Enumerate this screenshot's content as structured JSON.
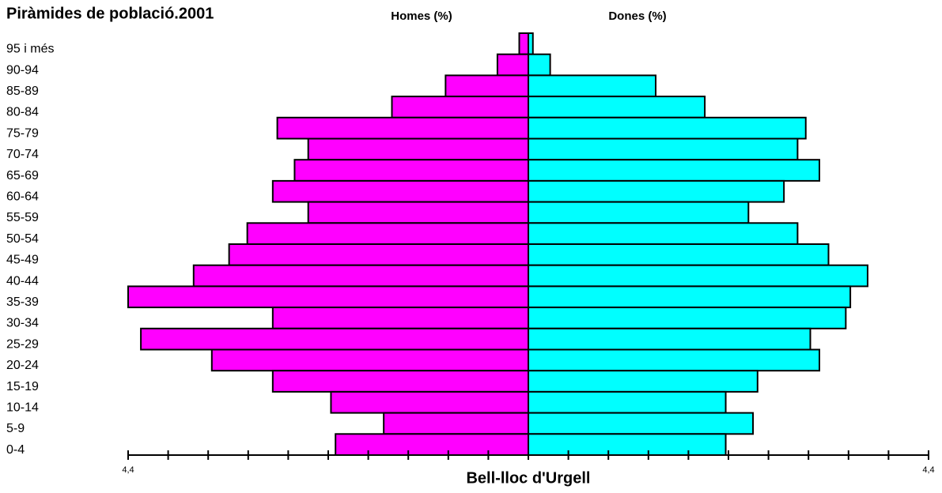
{
  "chart_data": {
    "type": "pyramid",
    "title": "Piràmides de població.2001",
    "xlabel": "Bell-lloc d'Urgell",
    "categories": [
      "95 i més",
      "90-94",
      "85-89",
      "80-84",
      "75-79",
      "70-74",
      "65-69",
      "60-64",
      "55-59",
      "50-54",
      "45-49",
      "40-44",
      "35-39",
      "30-34",
      "25-29",
      "20-24",
      "15-19",
      "10-14",
      "5-9",
      "0-4"
    ],
    "series": [
      {
        "name": "Homes (%)",
        "color": "#ff00ff",
        "side": "left",
        "values": [
          0.1,
          0.34,
          0.91,
          1.5,
          2.76,
          2.42,
          2.57,
          2.81,
          2.42,
          3.09,
          3.29,
          3.68,
          4.4,
          2.81,
          4.26,
          3.48,
          2.81,
          2.17,
          1.59,
          2.12
        ]
      },
      {
        "name": "Dones (%)",
        "color": "#00ffff",
        "side": "right",
        "values": [
          0.05,
          0.24,
          1.4,
          1.94,
          3.05,
          2.96,
          3.2,
          2.81,
          2.42,
          2.96,
          3.3,
          3.73,
          3.54,
          3.49,
          3.1,
          3.2,
          2.52,
          2.17,
          2.47,
          2.17
        ]
      }
    ],
    "xlim": [
      -4.4,
      4.4
    ],
    "xticks": [
      {
        "value": -4.4,
        "label": "4,4"
      },
      {
        "value": 4.4,
        "label": "4,4"
      }
    ],
    "xminor_ticks": [
      -3.96,
      -3.52,
      -3.08,
      -2.64,
      -2.2,
      -1.76,
      -1.32,
      -0.88,
      -0.44,
      0,
      0.44,
      0.88,
      1.32,
      1.76,
      2.2,
      2.64,
      3.08,
      3.52,
      3.96
    ]
  }
}
